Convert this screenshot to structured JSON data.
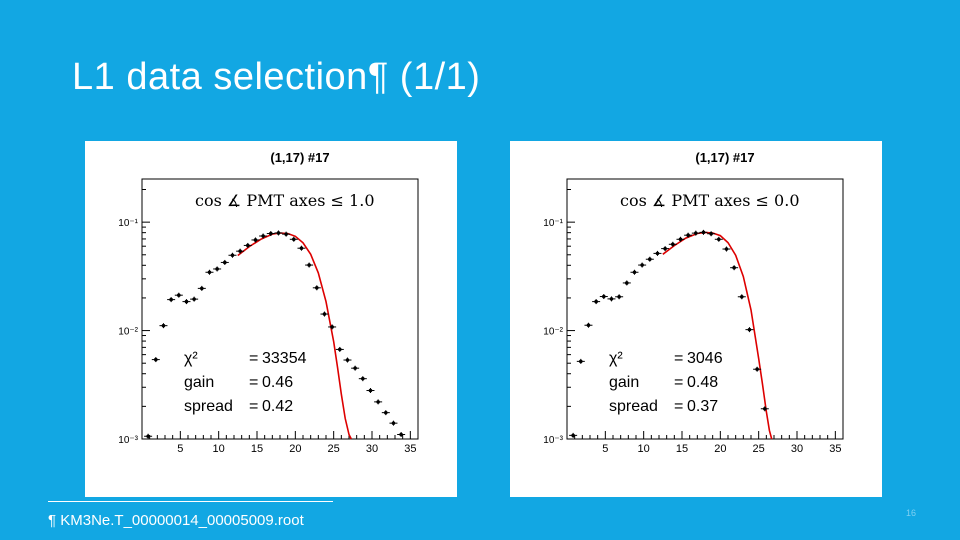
{
  "slide": {
    "title": "L1 data selection¶ (1/1)",
    "footnote": "¶ KM3Ne.T_00000014_00005009.root",
    "page_number": "16"
  },
  "colors": {
    "background": "#12a7e3",
    "frame": "#000000",
    "fit_curve": "#dd0000",
    "markers": "#000000"
  },
  "chart_data": [
    {
      "type": "scatter",
      "title": "(1,17) #17",
      "cut_label": "cos ∡ PMT axes ≤ 1.0",
      "stats": [
        {
          "label": "χ²",
          "eq": "=",
          "value": "33354"
        },
        {
          "label": "gain",
          "eq": "=",
          "value": "0.46"
        },
        {
          "label": "spread",
          "eq": "=",
          "value": "0.42"
        }
      ],
      "xlim": [
        0,
        36
      ],
      "ylim": [
        0.001,
        0.25
      ],
      "y_scale": "log",
      "x_ticks": [
        "5",
        "10",
        "15",
        "20",
        "25",
        "30",
        "35"
      ],
      "y_ticks": [
        {
          "value": 0.1,
          "label": "10⁻¹"
        },
        {
          "value": 0.01,
          "label": "10⁻²"
        },
        {
          "value": 0.001,
          "label": "10⁻³"
        }
      ],
      "series": [
        {
          "x": [
            0.8,
            1.8,
            2.8,
            3.8,
            4.8,
            5.8,
            6.8,
            7.8,
            8.8,
            9.8,
            10.8,
            11.8,
            12.8,
            13.8,
            14.8,
            15.8,
            16.8,
            17.8,
            18.8,
            19.8,
            20.8,
            21.8,
            22.8,
            23.8,
            24.8,
            25.8,
            26.8,
            27.8,
            28.8,
            29.8,
            30.8,
            31.8,
            32.8,
            33.8
          ],
          "y": [
            0.00106,
            0.0054,
            0.0111,
            0.0193,
            0.0212,
            0.0185,
            0.0195,
            0.0245,
            0.0345,
            0.037,
            0.0425,
            0.0495,
            0.054,
            0.061,
            0.0685,
            0.0745,
            0.0785,
            0.0795,
            0.0775,
            0.0695,
            0.0575,
            0.0402,
            0.0248,
            0.0142,
            0.0108,
            0.0067,
            0.00535,
            0.0045,
            0.0036,
            0.0028,
            0.0022,
            0.00175,
            0.0014,
            0.0011
          ]
        }
      ],
      "fit": {
        "x": [
          12.5,
          14,
          15.5,
          17,
          18,
          19,
          20,
          21,
          22,
          23,
          24,
          25,
          25.5,
          26,
          26.5,
          27,
          27.3
        ],
        "y": [
          0.0492,
          0.0595,
          0.0695,
          0.0775,
          0.0795,
          0.0785,
          0.074,
          0.0645,
          0.0505,
          0.034,
          0.0185,
          0.0079,
          0.0046,
          0.0026,
          0.00155,
          0.0011,
          0.001
        ]
      }
    },
    {
      "type": "scatter",
      "title": "(1,17) #17",
      "cut_label": "cos ∡ PMT axes ≤ 0.0",
      "stats": [
        {
          "label": "χ²",
          "eq": "=",
          "value": "3046"
        },
        {
          "label": "gain",
          "eq": "=",
          "value": "0.48"
        },
        {
          "label": "spread",
          "eq": "=",
          "value": "0.37"
        }
      ],
      "xlim": [
        0,
        36
      ],
      "ylim": [
        0.001,
        0.25
      ],
      "y_scale": "log",
      "x_ticks": [
        "5",
        "10",
        "15",
        "20",
        "25",
        "30",
        "35"
      ],
      "y_ticks": [
        {
          "value": 0.1,
          "label": "10⁻¹"
        },
        {
          "value": 0.01,
          "label": "10⁻²"
        },
        {
          "value": 0.001,
          "label": "10⁻³"
        }
      ],
      "series": [
        {
          "x": [
            0.8,
            1.8,
            2.8,
            3.8,
            4.8,
            5.8,
            6.8,
            7.8,
            8.8,
            9.8,
            10.8,
            11.8,
            12.8,
            13.8,
            14.8,
            15.8,
            16.8,
            17.8,
            18.8,
            19.8,
            20.8,
            21.8,
            22.8,
            23.8,
            24.8,
            25.8
          ],
          "y": [
            0.00108,
            0.0052,
            0.0112,
            0.0185,
            0.0206,
            0.0196,
            0.0205,
            0.0275,
            0.0345,
            0.0402,
            0.0455,
            0.0515,
            0.057,
            0.0625,
            0.0695,
            0.0758,
            0.0792,
            0.0805,
            0.0782,
            0.0695,
            0.0565,
            0.038,
            0.0205,
            0.0102,
            0.0044,
            0.0019
          ]
        }
      ],
      "fit": {
        "x": [
          12.5,
          14,
          15.5,
          17,
          18,
          19,
          20,
          21,
          22,
          23,
          24,
          25,
          25.5,
          26,
          26.4,
          26.7
        ],
        "y": [
          0.0505,
          0.0608,
          0.0712,
          0.0785,
          0.0805,
          0.0795,
          0.0752,
          0.0648,
          0.0495,
          0.0315,
          0.0155,
          0.0055,
          0.0032,
          0.0018,
          0.0012,
          0.001
        ]
      }
    }
  ]
}
